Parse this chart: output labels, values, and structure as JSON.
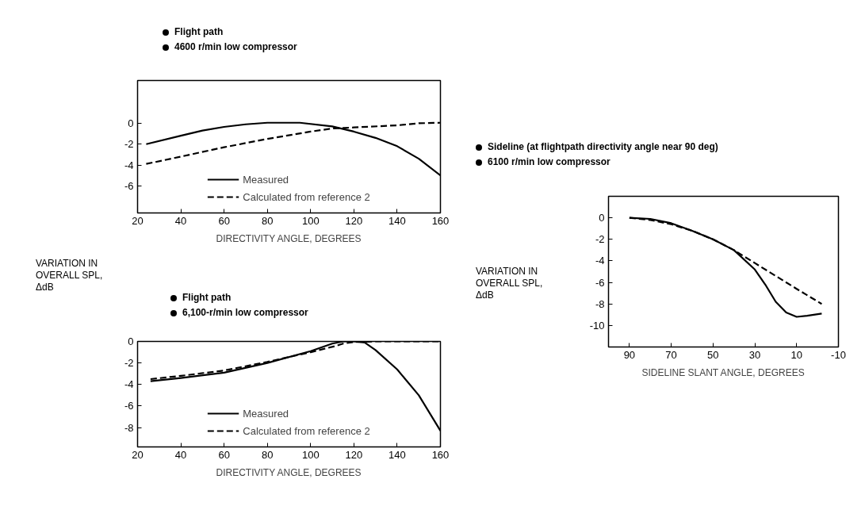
{
  "chart_data": [
    {
      "type": "line",
      "xlabel": "DIRECTIVITY ANGLE, DEGREES",
      "ylabel": "VARIATION IN OVERALL SPL, ΔdB",
      "annotations": [
        "Flight path",
        "4600 r/min low compressor"
      ],
      "xlim": [
        20,
        160
      ],
      "xticks": [
        20,
        40,
        60,
        80,
        100,
        120,
        140,
        160
      ],
      "ylim": [
        -8.6,
        4.1
      ],
      "yticks": [
        0,
        -2,
        -4,
        -6
      ],
      "grid": false,
      "legend": "bottom",
      "series": [
        {
          "name": "Measured",
          "color": "#000000",
          "line_style": "solid",
          "x": [
            24,
            40,
            50,
            60,
            70,
            80,
            95,
            110,
            120,
            130,
            140,
            150,
            160
          ],
          "values": [
            -2.0,
            -1.2,
            -0.7,
            -0.35,
            -0.1,
            0.05,
            0.05,
            -0.3,
            -0.8,
            -1.4,
            -2.2,
            -3.4,
            -5.0
          ]
        },
        {
          "name": "Calculated from reference 2",
          "color": "#000000",
          "line_style": "dashed",
          "x": [
            24,
            40,
            60,
            80,
            100,
            110,
            120,
            140,
            150,
            160
          ],
          "values": [
            -3.9,
            -3.2,
            -2.3,
            -1.5,
            -0.8,
            -0.5,
            -0.4,
            -0.2,
            0.0,
            0.05
          ]
        }
      ]
    },
    {
      "type": "line",
      "xlabel": "DIRECTIVITY ANGLE, DEGREES",
      "annotations": [
        "Flight path",
        "6,100-r/min low compressor"
      ],
      "xlim": [
        20,
        160
      ],
      "xticks": [
        20,
        40,
        60,
        80,
        100,
        120,
        140,
        160
      ],
      "ylim": [
        -9.8,
        0
      ],
      "yticks": [
        0,
        -2,
        -4,
        -6,
        -8
      ],
      "grid": false,
      "legend": "bottom",
      "series": [
        {
          "name": "Measured",
          "color": "#000000",
          "line_style": "solid",
          "x": [
            26,
            40,
            60,
            80,
            100,
            110,
            115,
            120,
            125,
            130,
            140,
            150,
            160
          ],
          "values": [
            -3.7,
            -3.4,
            -2.9,
            -2.0,
            -0.9,
            -0.2,
            0.0,
            0.0,
            -0.1,
            -0.8,
            -2.6,
            -5.0,
            -8.3
          ]
        },
        {
          "name": "Calculated from reference 2",
          "color": "#000000",
          "line_style": "dashed",
          "x": [
            26,
            40,
            60,
            80,
            100,
            112,
            115,
            120,
            130,
            160
          ],
          "values": [
            -3.5,
            -3.2,
            -2.7,
            -1.9,
            -1.0,
            -0.4,
            -0.2,
            -0.05,
            0.0,
            0.0
          ]
        }
      ]
    },
    {
      "type": "line",
      "xlabel": "SIDELINE SLANT ANGLE, DEGREES",
      "ylabel": "VARIATION IN OVERALL SPL, ΔdB",
      "annotations": [
        "Sideline (at flightpath directivity angle near 90 deg)",
        "6100 r/min low compressor"
      ],
      "xlim": [
        100,
        -10
      ],
      "xticks": [
        90,
        70,
        50,
        30,
        10,
        -10
      ],
      "ylim": [
        -12,
        2
      ],
      "yticks": [
        0,
        -2,
        -4,
        -6,
        -8,
        -10
      ],
      "grid": false,
      "series": [
        {
          "color": "#000000",
          "line_style": "solid",
          "x": [
            90,
            80,
            70,
            60,
            50,
            40,
            30,
            25,
            20,
            15,
            10,
            5,
            -2
          ],
          "values": [
            0.0,
            -0.1,
            -0.5,
            -1.2,
            -2.0,
            -3.0,
            -4.8,
            -6.2,
            -7.8,
            -8.8,
            -9.2,
            -9.1,
            -8.9
          ]
        },
        {
          "color": "#000000",
          "line_style": "dashed",
          "x": [
            90,
            80,
            70,
            60,
            50,
            40,
            30,
            20,
            10,
            -2
          ],
          "values": [
            0.0,
            -0.2,
            -0.6,
            -1.2,
            -2.0,
            -3.0,
            -4.2,
            -5.4,
            -6.6,
            -8.0
          ]
        }
      ]
    }
  ]
}
